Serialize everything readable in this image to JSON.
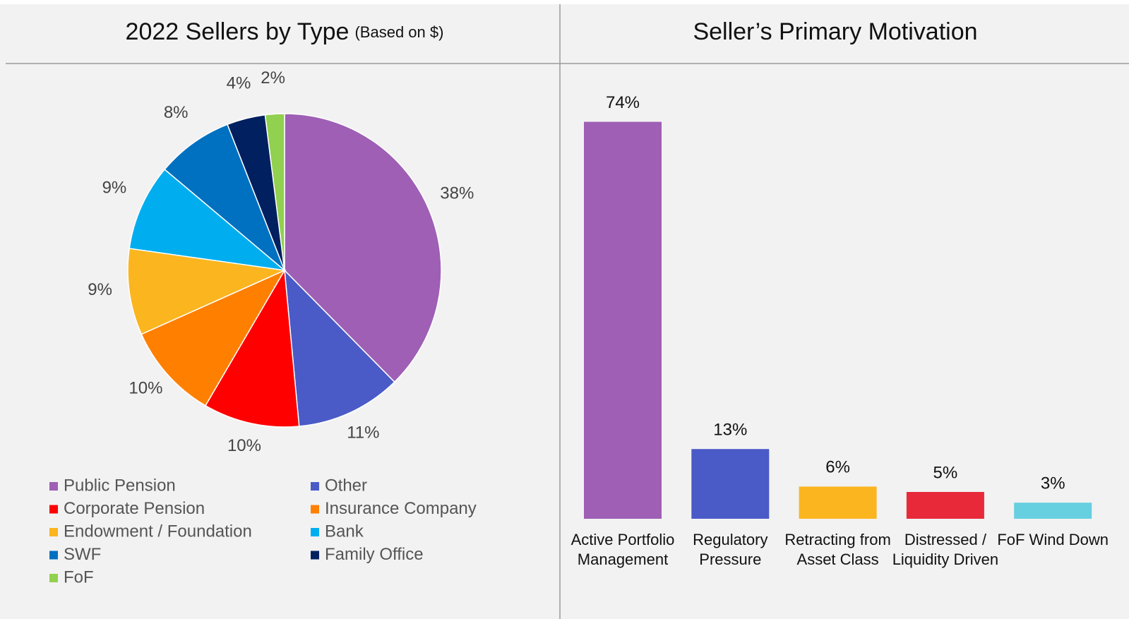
{
  "chart_data": [
    {
      "type": "pie",
      "title": "2022 Sellers by Type",
      "subtitle": "(Based on $)",
      "categories": [
        "Public Pension",
        "Other",
        "Corporate Pension",
        "Insurance Company",
        "Endowment / Foundation",
        "Bank",
        "SWF",
        "Family Office",
        "FoF"
      ],
      "values": [
        38,
        11,
        10,
        10,
        9,
        9,
        8,
        4,
        2
      ],
      "value_labels": [
        "38%",
        "11%",
        "10%",
        "10%",
        "9%",
        "9%",
        "8%",
        "4%",
        "2%"
      ],
      "colors": [
        "#9e5fb5",
        "#4a5bc7",
        "#ff0000",
        "#ff8000",
        "#fbb51f",
        "#00aeef",
        "#0070c0",
        "#002060",
        "#92d050"
      ],
      "legend": "bottom"
    },
    {
      "type": "bar",
      "title": "Seller’s Primary Motivation",
      "categories": [
        "Active Portfolio Management",
        "Regulatory Pressure",
        "Retracting from Asset Class",
        "Distressed / Liquidity Driven",
        "FoF Wind Down"
      ],
      "values": [
        74,
        13,
        6,
        5,
        3
      ],
      "value_labels": [
        "74%",
        "13%",
        "6%",
        "5%",
        "3%"
      ],
      "colors": [
        "#9e5fb5",
        "#4a5bc7",
        "#fbb51f",
        "#e8293a",
        "#66cfe0"
      ]
    }
  ]
}
